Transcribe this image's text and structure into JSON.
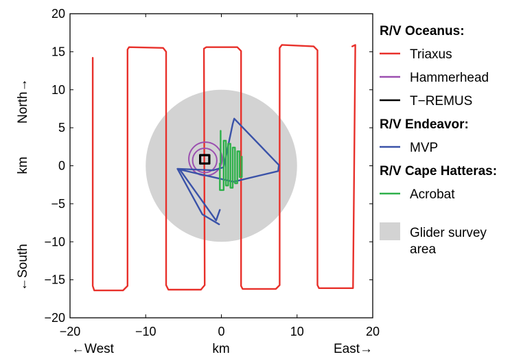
{
  "chart_data": {
    "type": "line",
    "title": "",
    "xlabel": "km",
    "ylabel": "km",
    "x_side_labels": {
      "left": "←West",
      "right": "East→"
    },
    "y_side_labels": {
      "top": "North→",
      "bottom": "←South"
    },
    "xlim": [
      -20,
      20
    ],
    "ylim": [
      -20,
      20
    ],
    "xticks": [
      -20,
      -10,
      0,
      10,
      20
    ],
    "yticks": [
      -20,
      -15,
      -10,
      -5,
      0,
      5,
      10,
      15,
      20
    ],
    "xtick_labels": [
      "−20",
      "−10",
      "0",
      "10",
      "20"
    ],
    "ytick_labels": [
      "−20",
      "−15",
      "−10",
      "−5",
      "0",
      "5",
      "10",
      "15",
      "20"
    ],
    "grid": false,
    "legend_position": "outside-right",
    "legend": [
      {
        "kind": "header",
        "label": "R/V Oceanus:"
      },
      {
        "kind": "line",
        "label": "Triaxus",
        "color": "#e8302a"
      },
      {
        "kind": "line",
        "label": "Hammerhead",
        "color": "#9b4fb0"
      },
      {
        "kind": "line",
        "label": "T−REMUS",
        "color": "#000000"
      },
      {
        "kind": "header",
        "label": "R/V Endeavor:"
      },
      {
        "kind": "line",
        "label": "MVP",
        "color": "#3a52a8"
      },
      {
        "kind": "header",
        "label": "R/V Cape Hatteras:"
      },
      {
        "kind": "line",
        "label": "Acrobat",
        "color": "#2eb04a"
      },
      {
        "kind": "patch",
        "label": "Glider survey area",
        "label_lines": [
          "Glider survey",
          "area"
        ],
        "color": "#d3d3d3"
      }
    ],
    "survey_area": {
      "center": [
        0,
        0
      ],
      "radius": 10,
      "color": "#d3d3d3"
    },
    "series": [
      {
        "name": "Triaxus",
        "color": "#e8302a",
        "x": [
          -17,
          -17,
          -16.8,
          -13,
          -12.4,
          -12.4,
          -12.2,
          -7.7,
          -7.3,
          -7.3,
          -7,
          -2.7,
          -2.2,
          -2.3,
          -2,
          2.1,
          2.6,
          2.6,
          2.8,
          7.2,
          7.7,
          7.7,
          8,
          12.2,
          12.7,
          12.7,
          12.9,
          17.4,
          17.7,
          17.7,
          17.3
        ],
        "y": [
          14.2,
          -15.8,
          -16.4,
          -16.4,
          -15.8,
          15.3,
          15.6,
          15.5,
          15,
          -15.7,
          -16.3,
          -16.3,
          -15.7,
          15.4,
          15.6,
          15.6,
          15.1,
          -15.8,
          -16.2,
          -16.2,
          -15.7,
          15.5,
          15.9,
          15.7,
          15.2,
          -15.7,
          -16.1,
          -16.1,
          15.7,
          15.9,
          15.7
        ]
      },
      {
        "name": "Hammerhead",
        "color": "#9b4fb0",
        "loops": [
          {
            "center": [
              -2.1,
              0.9
            ],
            "radius": 2.2
          },
          {
            "center": [
              -2.2,
              0.7
            ],
            "radius": 1.6
          }
        ]
      },
      {
        "name": "T−REMUS",
        "color": "#000000",
        "x": [
          -2.8,
          -1.6,
          -1.6,
          -2.8,
          -2.8
        ],
        "y": [
          0.3,
          0.3,
          1.4,
          1.4,
          0.3
        ]
      },
      {
        "name": "MVP",
        "color": "#3a52a8",
        "x": [
          -0.3,
          -2.5,
          -5.8,
          -1.1,
          0.3,
          1.5,
          1.7,
          7.6,
          7.5,
          1.6,
          -5.5,
          -0.7,
          -0.2
        ],
        "y": [
          -7.7,
          -6.4,
          -0.4,
          -0.6,
          -0.2,
          5.5,
          6.2,
          0.1,
          -0.7,
          -2.1,
          -0.5,
          -7.2,
          -5.8
        ]
      },
      {
        "name": "Acrobat",
        "color": "#2eb04a",
        "x": [
          -0.1,
          -0.1,
          -0.2,
          -0.2,
          0.3,
          0.3,
          0.6,
          0.6,
          0.9,
          0.9,
          1.2,
          1.2,
          1.5,
          1.5,
          1.8,
          1.8,
          2.1,
          2.1,
          2.4,
          2.4,
          2.7,
          2.7
        ],
        "y": [
          4.6,
          0.3,
          0.3,
          -3.2,
          -3.2,
          3.3,
          3.3,
          -2.6,
          -2.6,
          2.9,
          2.9,
          -2.9,
          -2.9,
          2.4,
          2.4,
          -2.3,
          -2.3,
          1.9,
          1.9,
          -1.5,
          -1.5,
          1.2
        ]
      }
    ]
  }
}
